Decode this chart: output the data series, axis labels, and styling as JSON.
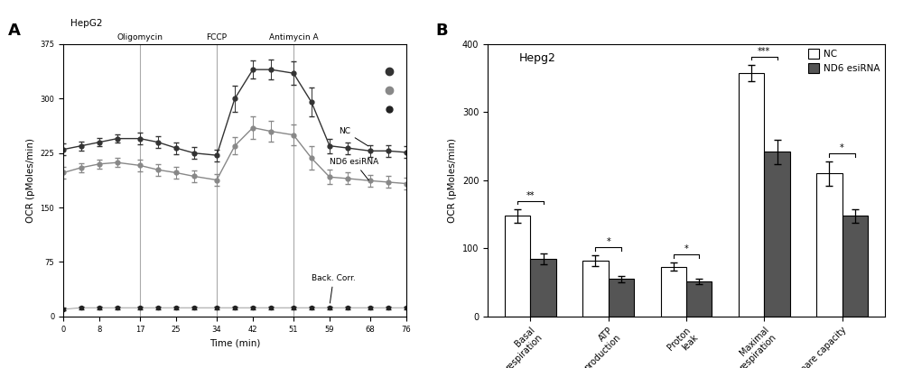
{
  "panel_A": {
    "title": "HepG2",
    "xlabel": "Time (min)",
    "ylabel": "OCR (pMoles/min)",
    "vlines": [
      17,
      34,
      51
    ],
    "vline_labels": [
      "Oligomycin",
      "FCCP",
      "Antimycin A"
    ],
    "ylim": [
      0,
      375
    ],
    "yticks": [
      0,
      75,
      150,
      225,
      300,
      375
    ],
    "xlim": [
      0,
      76
    ],
    "xticks": [
      0,
      8,
      17,
      25,
      34,
      42,
      51,
      59,
      68,
      76
    ],
    "time_points": [
      0,
      4,
      8,
      12,
      17,
      21,
      25,
      29,
      34,
      38,
      42,
      46,
      51,
      55,
      59,
      63,
      68,
      72,
      76
    ],
    "NC_values": [
      230,
      235,
      240,
      245,
      245,
      240,
      232,
      225,
      222,
      300,
      340,
      340,
      335,
      295,
      235,
      232,
      228,
      228,
      226
    ],
    "NC_err": [
      8,
      6,
      6,
      6,
      8,
      8,
      8,
      8,
      8,
      18,
      12,
      14,
      16,
      20,
      10,
      8,
      8,
      8,
      8
    ],
    "ND6_values": [
      198,
      205,
      210,
      212,
      208,
      202,
      198,
      193,
      188,
      235,
      260,
      255,
      250,
      218,
      192,
      190,
      187,
      185,
      183
    ],
    "ND6_err": [
      8,
      6,
      6,
      6,
      8,
      8,
      8,
      8,
      8,
      12,
      15,
      14,
      14,
      16,
      10,
      8,
      8,
      8,
      8
    ],
    "BC_values": [
      10,
      12,
      12,
      12,
      12,
      12,
      12,
      12,
      12,
      12,
      12,
      12,
      12,
      12,
      12,
      12,
      12,
      12,
      12
    ],
    "BC_err": [
      2,
      2,
      2,
      2,
      2,
      2,
      2,
      2,
      2,
      2,
      2,
      2,
      2,
      2,
      2,
      2,
      2,
      2,
      2
    ],
    "NC_color": "#333333",
    "ND6_color": "#888888",
    "BC_color": "#222222",
    "BC_line_color": "#999999"
  },
  "panel_B": {
    "title": "Hepg2",
    "ylabel": "OCR (pMoles/min)",
    "ylim": [
      0,
      400
    ],
    "yticks": [
      0,
      100,
      200,
      300,
      400
    ],
    "categories": [
      "Basal\nrespiration",
      "ATP\nproduction",
      "Proton\nleak",
      "Maximal\nrespiration",
      "Spare capacity"
    ],
    "NC_values": [
      148,
      82,
      73,
      358,
      210
    ],
    "NC_err": [
      10,
      8,
      6,
      12,
      18
    ],
    "ND6_values": [
      85,
      55,
      52,
      242,
      148
    ],
    "ND6_err": [
      8,
      5,
      4,
      18,
      10
    ],
    "NC_color": "#ffffff",
    "ND6_color": "#555555",
    "bar_edge_color": "#000000",
    "sig_labels": [
      "**",
      "*",
      "*",
      "***",
      "*"
    ],
    "legend_NC": "NC",
    "legend_ND6": "ND6 esiRNA"
  }
}
